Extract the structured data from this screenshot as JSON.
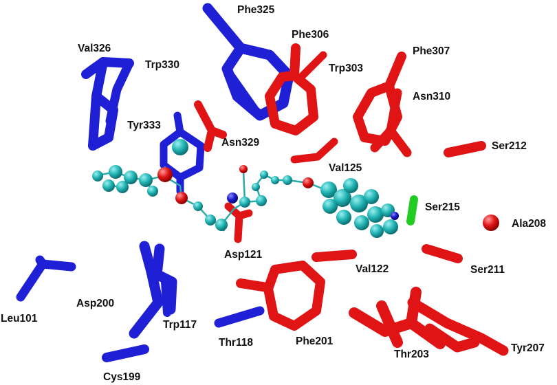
{
  "colors": {
    "blue_residues": "#1f1fd6",
    "red_residues": "#e01414",
    "ligand_carbon": "#22b4b4",
    "ligand_oxygen": "#e01414",
    "ligand_nitrogen": "#1a1acc",
    "ser215_highlight": "#22cc22",
    "background": "#ffffff"
  },
  "residue_labels": {
    "phe325": "Phe325",
    "phe306": "Phe306",
    "val326": "Val326",
    "trp330": "Trp330",
    "phe307": "Phe307",
    "trp303": "Trp303",
    "asn310": "Asn310",
    "tyr333": "Tyr333",
    "asn329": "Asn329",
    "ser212": "Ser212",
    "val125": "Val125",
    "ser215": "Ser215",
    "ala208": "Ala208",
    "asp121": "Asp121",
    "val122": "Val122",
    "ser211": "Ser211",
    "leu101": "Leu101",
    "asp200": "Asp200",
    "trp117": "Trp117",
    "thr118": "Thr118",
    "phe201": "Phe201",
    "thr203": "Thr203",
    "tyr207": "Tyr207",
    "cys199": "Cys199"
  }
}
